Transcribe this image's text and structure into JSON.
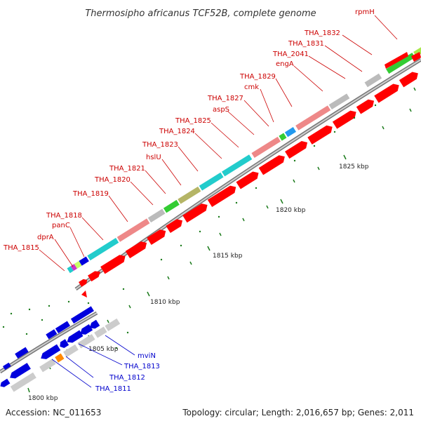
{
  "title": "Thermosipho africanus TCF52B, complete genome",
  "footer": {
    "accession": "Accession: NC_011653",
    "topology": "Topology: circular; Length: 2,016,657 bp; Genes: 2,011"
  },
  "colors": {
    "forward_gene": "#ff0000",
    "reverse_gene": "#0000dd",
    "red_label": "#cc0000",
    "blue_label": "#0000cc",
    "tick": "#1a7a1a",
    "backbone": "#888888"
  },
  "scale_labels": [
    "1825 kbp",
    "1820 kbp",
    "1815 kbp",
    "1810 kbp",
    "1805 kbp",
    "1800 kbp"
  ],
  "upper_labels": [
    "rpmH",
    "THA_1832",
    "THA_1831",
    "THA_2041",
    "engA",
    "THA_1829",
    "cmk",
    "THA_1827",
    "aspS",
    "THA_1825",
    "THA_1824",
    "THA_1823",
    "hslU",
    "THA_1821",
    "THA_1820",
    "THA_1819",
    "THA_1818",
    "panC",
    "dprA",
    "THA_1815"
  ],
  "lower_labels": [
    "mviN",
    "THA_1813",
    "THA_1812",
    "THA_1811"
  ]
}
